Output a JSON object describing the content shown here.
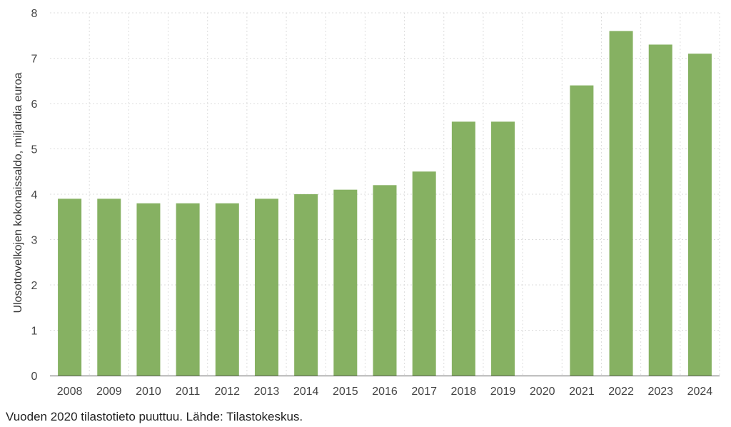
{
  "chart_data": {
    "type": "bar",
    "title": "",
    "xlabel": "",
    "ylabel": "Ulosottovelkojen kokonaissaldo, miljardia euroa",
    "categories": [
      "2008",
      "2009",
      "2010",
      "2011",
      "2012",
      "2013",
      "2014",
      "2015",
      "2016",
      "2017",
      "2018",
      "2019",
      "2020",
      "2021",
      "2022",
      "2023",
      "2024"
    ],
    "values": [
      3.9,
      3.9,
      3.8,
      3.8,
      3.8,
      3.9,
      4.0,
      4.1,
      4.2,
      4.5,
      5.6,
      5.6,
      null,
      6.4,
      7.6,
      7.3,
      7.1
    ],
    "ylim": [
      0,
      8
    ],
    "yticks": [
      0,
      1,
      2,
      3,
      4,
      5,
      6,
      7,
      8
    ],
    "grid": true,
    "legend": "none",
    "bar_color": "#86b162"
  },
  "footnote": "Vuoden 2020 tilastotieto puuttuu. Lähde: Tilastokeskus."
}
